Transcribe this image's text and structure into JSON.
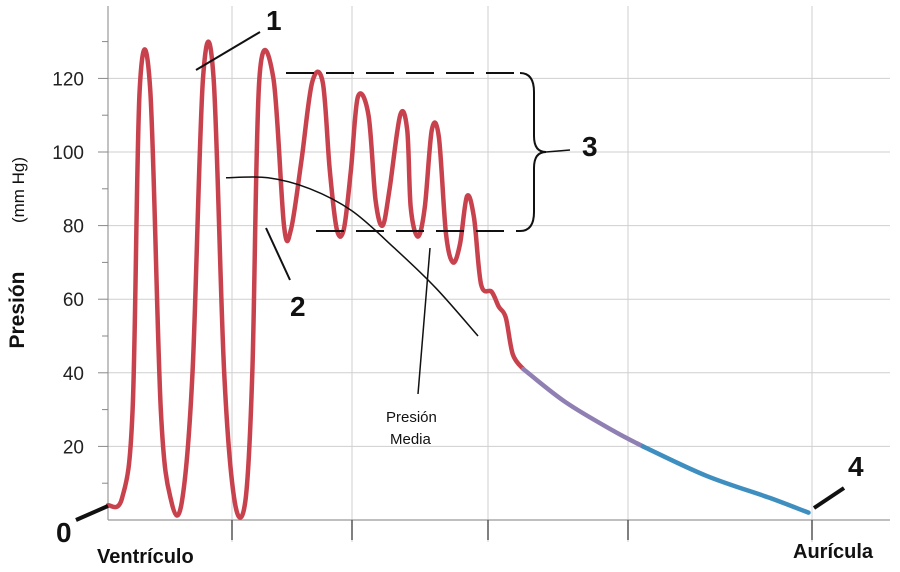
{
  "chart_data": {
    "type": "line",
    "ylabel": "Presión",
    "yunit": "(mm Hg)",
    "ylim": [
      0,
      135
    ],
    "yticks": [
      20,
      40,
      60,
      80,
      100,
      120
    ],
    "grid": true,
    "x_categories": [
      "Ventrículo",
      "Aurícula"
    ],
    "origin_label": "0",
    "markers": [
      "1",
      "2",
      "3",
      "4"
    ],
    "annotation": [
      "Presión",
      "Media"
    ],
    "mean_pressure": [
      93,
      93,
      90,
      84,
      74,
      63,
      50
    ],
    "series": [
      {
        "segments": [
          {
            "color": "#c8424e",
            "points": [
              [
                0.0,
                4
              ],
              [
                0.02,
                6
              ],
              [
                0.035,
                30
              ],
              [
                0.045,
                117
              ],
              [
                0.06,
                117
              ],
              [
                0.075,
                30
              ],
              [
                0.09,
                5
              ],
              [
                0.105,
                5
              ],
              [
                0.12,
                40
              ],
              [
                0.135,
                120
              ],
              [
                0.15,
                120
              ],
              [
                0.165,
                40
              ],
              [
                0.18,
                5
              ],
              [
                0.195,
                5
              ],
              [
                0.205,
                40
              ],
              [
                0.215,
                120
              ],
              [
                0.235,
                120
              ],
              [
                0.25,
                80
              ],
              [
                0.26,
                79
              ],
              [
                0.275,
                98
              ],
              [
                0.29,
                119
              ],
              [
                0.305,
                119
              ],
              [
                0.315,
                95
              ],
              [
                0.325,
                79
              ],
              [
                0.335,
                79
              ],
              [
                0.345,
                95
              ],
              [
                0.355,
                115
              ],
              [
                0.37,
                110
              ],
              [
                0.38,
                87
              ],
              [
                0.39,
                80
              ],
              [
                0.4,
                90
              ],
              [
                0.415,
                110
              ],
              [
                0.425,
                106
              ],
              [
                0.43,
                85
              ],
              [
                0.44,
                77
              ],
              [
                0.45,
                85
              ],
              [
                0.46,
                106
              ],
              [
                0.47,
                104
              ],
              [
                0.48,
                78
              ],
              [
                0.49,
                70
              ],
              [
                0.5,
                75
              ],
              [
                0.51,
                88
              ],
              [
                0.52,
                82
              ],
              [
                0.53,
                64
              ],
              [
                0.545,
                62
              ],
              [
                0.555,
                58
              ],
              [
                0.565,
                55
              ],
              [
                0.575,
                45
              ],
              [
                0.59,
                41
              ]
            ]
          },
          {
            "color": "#8f7fb3",
            "points": [
              [
                0.59,
                41
              ],
              [
                0.65,
                32
              ],
              [
                0.72,
                24
              ],
              [
                0.76,
                20
              ]
            ]
          },
          {
            "color": "#3e8fbf",
            "points": [
              [
                0.76,
                20
              ],
              [
                0.85,
                12
              ],
              [
                0.94,
                6
              ],
              [
                0.995,
                2
              ]
            ]
          }
        ]
      }
    ]
  }
}
